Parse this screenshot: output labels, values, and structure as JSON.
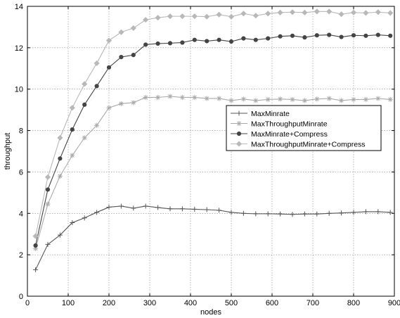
{
  "chart_data": {
    "type": "line",
    "xlabel": "nodes",
    "ylabel": "throughput",
    "xlim": [
      0,
      900
    ],
    "ylim": [
      0,
      14
    ],
    "xticks": [
      0,
      100,
      200,
      300,
      400,
      500,
      600,
      700,
      800,
      900
    ],
    "yticks": [
      0,
      2,
      4,
      6,
      8,
      10,
      12,
      14
    ],
    "grid": true,
    "legend_position": "right",
    "x": [
      20,
      50,
      80,
      110,
      140,
      170,
      200,
      230,
      260,
      290,
      320,
      350,
      380,
      410,
      440,
      470,
      500,
      530,
      560,
      590,
      620,
      650,
      680,
      710,
      740,
      770,
      800,
      830,
      860,
      890
    ],
    "series": [
      {
        "name": "MaxMinrate",
        "color": "#555555",
        "marker": "plus",
        "values": [
          1.28,
          2.5,
          2.95,
          3.55,
          3.78,
          4.05,
          4.3,
          4.35,
          4.25,
          4.35,
          4.28,
          4.22,
          4.22,
          4.2,
          4.18,
          4.15,
          4.05,
          4.0,
          3.98,
          3.98,
          3.97,
          3.95,
          3.97,
          3.97,
          4.0,
          4.02,
          4.05,
          4.08,
          4.08,
          4.05
        ]
      },
      {
        "name": "MaxThroughputMinrate",
        "color": "#aaaaaa",
        "marker": "star",
        "values": [
          2.3,
          4.45,
          5.8,
          6.8,
          7.65,
          8.25,
          9.1,
          9.3,
          9.35,
          9.6,
          9.6,
          9.65,
          9.6,
          9.6,
          9.55,
          9.55,
          9.45,
          9.52,
          9.45,
          9.5,
          9.52,
          9.5,
          9.45,
          9.52,
          9.55,
          9.45,
          9.5,
          9.5,
          9.55,
          9.5
        ]
      },
      {
        "name": "MaxMinrate+Compress",
        "color": "#444444",
        "marker": "circle",
        "values": [
          2.45,
          5.15,
          6.65,
          8.05,
          9.25,
          10.15,
          11.05,
          11.55,
          11.65,
          12.15,
          12.2,
          12.22,
          12.25,
          12.38,
          12.32,
          12.38,
          12.3,
          12.45,
          12.38,
          12.45,
          12.55,
          12.58,
          12.5,
          12.6,
          12.62,
          12.52,
          12.6,
          12.58,
          12.62,
          12.58
        ]
      },
      {
        "name": "MaxThroughputMinrate+Compress",
        "color": "#b8b8b8",
        "marker": "diamond",
        "values": [
          2.9,
          5.75,
          7.65,
          9.1,
          10.25,
          11.25,
          12.35,
          12.75,
          12.95,
          13.35,
          13.45,
          13.52,
          13.52,
          13.52,
          13.5,
          13.6,
          13.5,
          13.65,
          13.55,
          13.65,
          13.7,
          13.72,
          13.7,
          13.75,
          13.75,
          13.62,
          13.7,
          13.68,
          13.72,
          13.68
        ]
      }
    ]
  }
}
